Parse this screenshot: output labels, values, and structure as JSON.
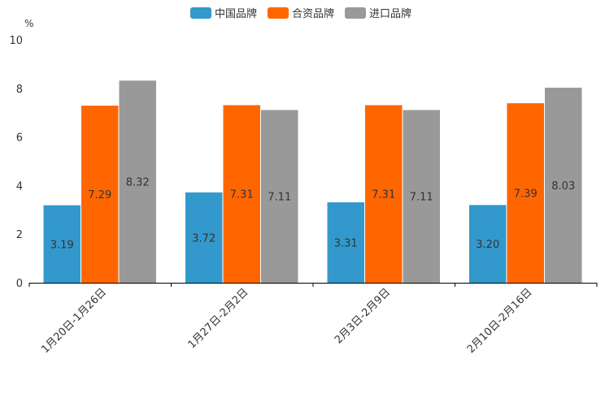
{
  "chart_data": {
    "type": "bar",
    "title": "",
    "ylabel": "%",
    "xlabel": "",
    "ylim": [
      0,
      10
    ],
    "yticks": [
      0,
      2,
      4,
      6,
      8,
      10
    ],
    "grid": false,
    "legend_position": "top-center",
    "categories": [
      "1月20日-1月26日",
      "1月27日-2月2日",
      "2月3日-2月9日",
      "2月10日-2月16日"
    ],
    "series": [
      {
        "name": "中国品牌",
        "color": "#3399cc",
        "values": [
          3.19,
          3.72,
          3.31,
          3.2
        ],
        "labels": [
          "3.19",
          "3.72",
          "3.31",
          "3.20"
        ]
      },
      {
        "name": "合资品牌",
        "color": "#ff6600",
        "values": [
          7.29,
          7.31,
          7.31,
          7.39
        ],
        "labels": [
          "7.29",
          "7.31",
          "7.31",
          "7.39"
        ]
      },
      {
        "name": "进口品牌",
        "color": "#999999",
        "values": [
          8.32,
          7.11,
          7.11,
          8.03
        ],
        "labels": [
          "8.32",
          "7.11",
          "7.11",
          "8.03"
        ]
      }
    ]
  }
}
